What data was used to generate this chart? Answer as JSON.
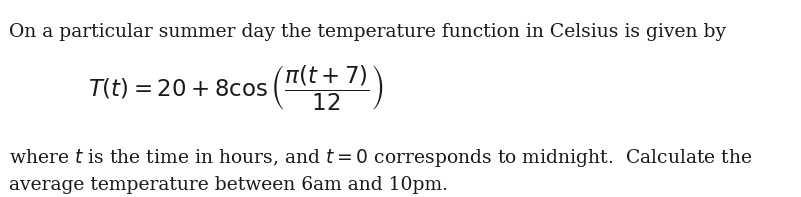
{
  "background_color": "#ffffff",
  "line1": "On a particular summer day the temperature function in Celsius is given by",
  "formula": "$T(t) = 20 + 8\\cos\\left(\\dfrac{\\pi(t+7)}{12}\\right)$",
  "line3_part1": "where $t$ is the time in hours, and $t = 0$ corresponds to midnight.  Calculate the",
  "line4": "average temperature between 6am and 10pm.",
  "text_color": "#1a1a1a",
  "font_size_body": 13.5,
  "font_size_formula": 16.5,
  "fig_width": 8.01,
  "fig_height": 1.97,
  "dpi": 100
}
